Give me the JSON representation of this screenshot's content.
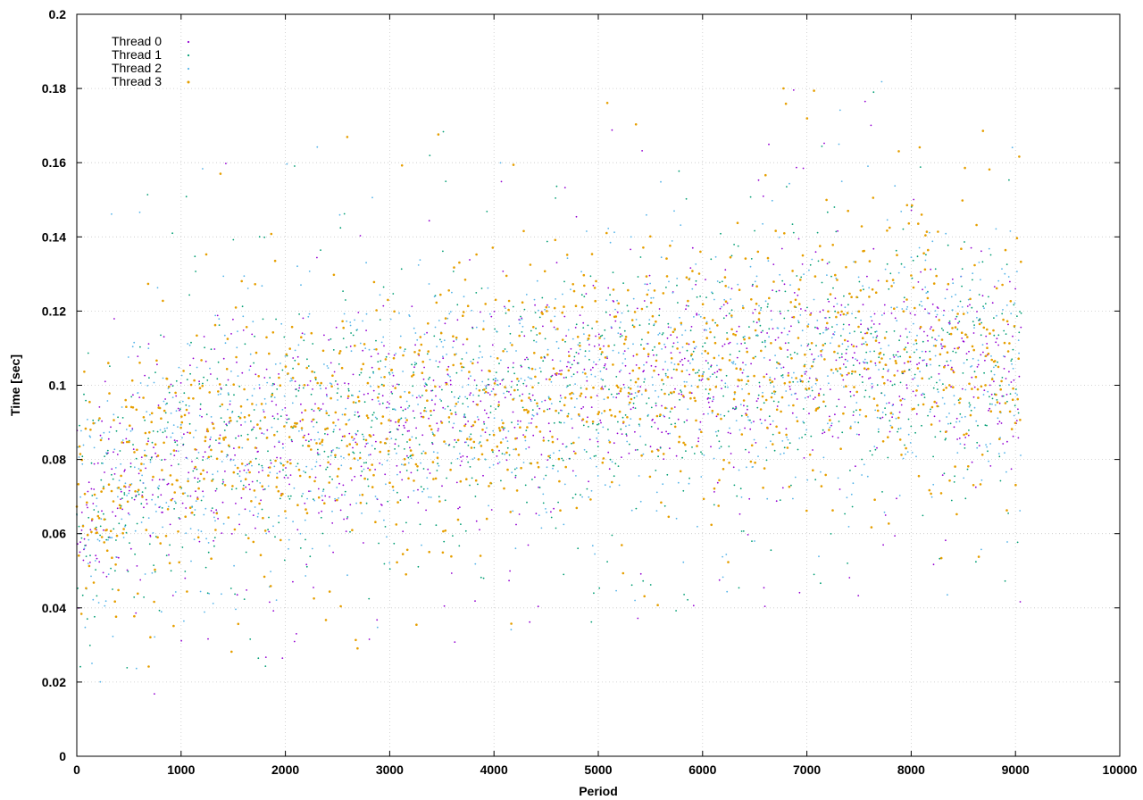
{
  "chart_data": {
    "type": "scatter",
    "title": "",
    "xlabel": "Period",
    "ylabel": "Time [sec]",
    "xlim": [
      0,
      10000
    ],
    "ylim": [
      0,
      0.2
    ],
    "x_ticks": [
      "0",
      "1000",
      "2000",
      "3000",
      "4000",
      "5000",
      "6000",
      "7000",
      "8000",
      "9000",
      "10000"
    ],
    "y_ticks": [
      "0",
      "0.02",
      "0.04",
      "0.06",
      "0.08",
      "0.1",
      "0.12",
      "0.14",
      "0.16",
      "0.18",
      "0.2"
    ],
    "grid": true,
    "legend_position": "top-left",
    "sampling_interval": 8,
    "series": [
      {
        "name": "Thread 0",
        "color": "#9400d3",
        "points_per_period": 1,
        "x_start": 0,
        "x_end": 9050,
        "trend": [
          [
            0,
            0.065
          ],
          [
            1000,
            0.083
          ],
          [
            2000,
            0.088
          ],
          [
            3000,
            0.092
          ],
          [
            4000,
            0.097
          ],
          [
            5000,
            0.1
          ],
          [
            6000,
            0.103
          ],
          [
            7000,
            0.105
          ],
          [
            8000,
            0.107
          ],
          [
            9050,
            0.102
          ]
        ],
        "spread": 0.014
      },
      {
        "name": "Thread 1",
        "color": "#009e73",
        "points_per_period": 1,
        "x_start": 0,
        "x_end": 9050,
        "trend": [
          [
            0,
            0.066
          ],
          [
            1000,
            0.082
          ],
          [
            2000,
            0.088
          ],
          [
            3000,
            0.093
          ],
          [
            4000,
            0.097
          ],
          [
            5000,
            0.1
          ],
          [
            6000,
            0.104
          ],
          [
            7000,
            0.106
          ],
          [
            8000,
            0.107
          ],
          [
            9050,
            0.103
          ]
        ],
        "spread": 0.017
      },
      {
        "name": "Thread 2",
        "color": "#56b4e9",
        "points_per_period": 1,
        "x_start": 0,
        "x_end": 9050,
        "trend": [
          [
            0,
            0.066
          ],
          [
            1000,
            0.082
          ],
          [
            2000,
            0.089
          ],
          [
            3000,
            0.093
          ],
          [
            4000,
            0.098
          ],
          [
            5000,
            0.101
          ],
          [
            6000,
            0.105
          ],
          [
            7000,
            0.106
          ],
          [
            8000,
            0.108
          ],
          [
            9050,
            0.104
          ]
        ],
        "spread": 0.018
      },
      {
        "name": "Thread 3",
        "color": "#e69f00",
        "points_per_period": 1,
        "x_start": 0,
        "x_end": 9050,
        "trend": [
          [
            0,
            0.067
          ],
          [
            1000,
            0.084
          ],
          [
            2000,
            0.09
          ],
          [
            3000,
            0.095
          ],
          [
            4000,
            0.099
          ],
          [
            5000,
            0.103
          ],
          [
            6000,
            0.106
          ],
          [
            7000,
            0.108
          ],
          [
            8000,
            0.11
          ],
          [
            9050,
            0.105
          ]
        ],
        "spread": 0.017
      }
    ]
  }
}
